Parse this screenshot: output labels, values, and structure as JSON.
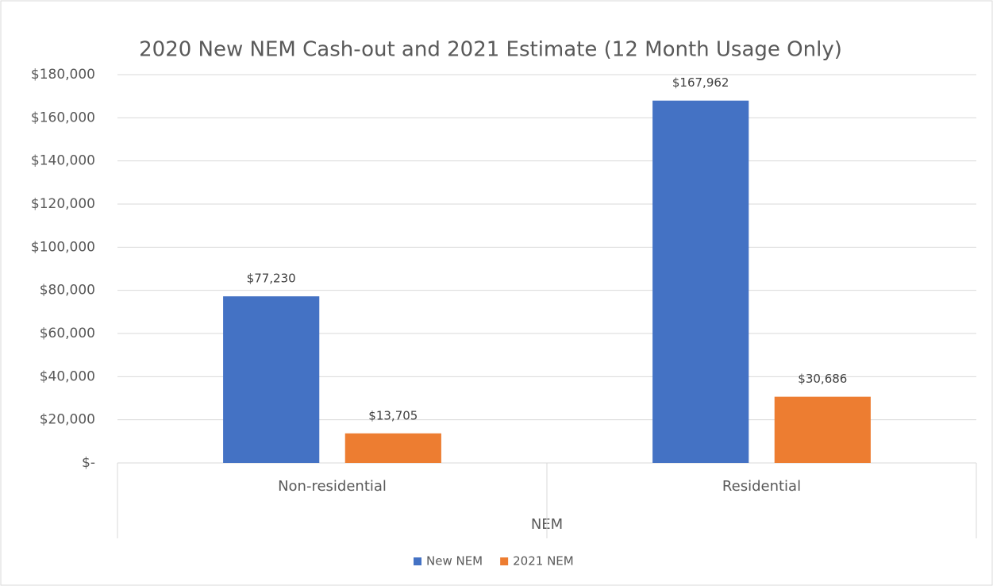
{
  "chart_data": {
    "type": "bar",
    "title": "2020 New NEM Cash-out and 2021 Estimate (12 Month Usage Only)",
    "x_label": "NEM",
    "categories": [
      "Non-residential",
      "Residential"
    ],
    "series": [
      {
        "name": "New NEM",
        "color": "#4472c4",
        "values": [
          77230,
          167962
        ],
        "value_labels": [
          "$77,230",
          "$167,962"
        ]
      },
      {
        "name": "2021 NEM",
        "color": "#ed7d31",
        "values": [
          13705,
          30686
        ],
        "value_labels": [
          "$13,705",
          "$30,686"
        ]
      }
    ],
    "ylim": [
      0,
      180000
    ],
    "yticks": [
      {
        "value": 0,
        "label": "$-"
      },
      {
        "value": 20000,
        "label": "$20,000"
      },
      {
        "value": 40000,
        "label": "$40,000"
      },
      {
        "value": 60000,
        "label": "$60,000"
      },
      {
        "value": 80000,
        "label": "$80,000"
      },
      {
        "value": 100000,
        "label": "$100,000"
      },
      {
        "value": 120000,
        "label": "$120,000"
      },
      {
        "value": 140000,
        "label": "$140,000"
      },
      {
        "value": 160000,
        "label": "$160,000"
      },
      {
        "value": 180000,
        "label": "$180,000"
      }
    ],
    "grid": true,
    "legend": "bottom"
  }
}
